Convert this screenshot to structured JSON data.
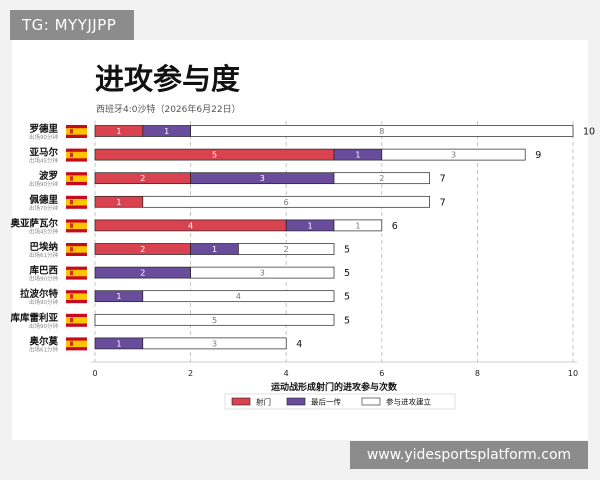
{
  "watermark": "TG: MYYJJPP",
  "site_banner": "www.yidesportsplatform.com",
  "colors": {
    "shots": "#d9434f",
    "last_pass": "#6a4c9c",
    "build_up": "#ffffff",
    "flag_red": "#c60b1e",
    "flag_yellow": "#ffc400"
  },
  "chart_data": {
    "type": "bar",
    "orientation": "horizontal",
    "stacked": true,
    "title": "进攻参与度",
    "subtitle": "西班牙4:0沙特（2026年6月22日）",
    "xlabel": "运动战形成射门的进攻参与次数",
    "ylabel": "",
    "xlim": [
      0,
      10
    ],
    "xticks": [
      0,
      2,
      4,
      6,
      8,
      10
    ],
    "grid": "vertical dashed",
    "legend_position": "bottom",
    "players": [
      {
        "name": "罗德里",
        "minutes": "出场90分钟",
        "flag": "spain-flag"
      },
      {
        "name": "亚马尔",
        "minutes": "出场45分钟",
        "flag": "spain-flag"
      },
      {
        "name": "波罗",
        "minutes": "出场90分钟",
        "flag": "spain-flag"
      },
      {
        "name": "佩德里",
        "minutes": "出场70分钟",
        "flag": "spain-flag"
      },
      {
        "name": "奥亚萨瓦尔",
        "minutes": "出场45分钟",
        "flag": "spain-flag"
      },
      {
        "name": "巴埃纳",
        "minutes": "出场61分钟",
        "flag": "spain-flag"
      },
      {
        "name": "库巴西",
        "minutes": "出场90分钟",
        "flag": "spain-flag"
      },
      {
        "name": "拉波尔特",
        "minutes": "出场90分钟",
        "flag": "spain-flag"
      },
      {
        "name": "库库雷利亚",
        "minutes": "出场90分钟",
        "flag": "spain-flag"
      },
      {
        "name": "奥尔莫",
        "minutes": "出场61分钟",
        "flag": "spain-flag"
      }
    ],
    "categories": [
      "罗德里",
      "亚马尔",
      "波罗",
      "佩德里",
      "奥亚萨瓦尔",
      "巴埃纳",
      "库巴西",
      "拉波尔特",
      "库库雷利亚",
      "奥尔莫"
    ],
    "series": [
      {
        "name": "射门",
        "values": [
          1,
          5,
          2,
          1,
          4,
          2,
          0,
          0,
          0,
          0
        ]
      },
      {
        "name": "最后一传",
        "values": [
          1,
          1,
          3,
          0,
          1,
          1,
          2,
          1,
          0,
          1
        ]
      },
      {
        "name": "参与进攻建立",
        "values": [
          8,
          3,
          2,
          6,
          1,
          2,
          3,
          4,
          5,
          3
        ]
      }
    ],
    "totals": [
      10,
      9,
      7,
      7,
      6,
      5,
      5,
      5,
      5,
      4
    ]
  }
}
